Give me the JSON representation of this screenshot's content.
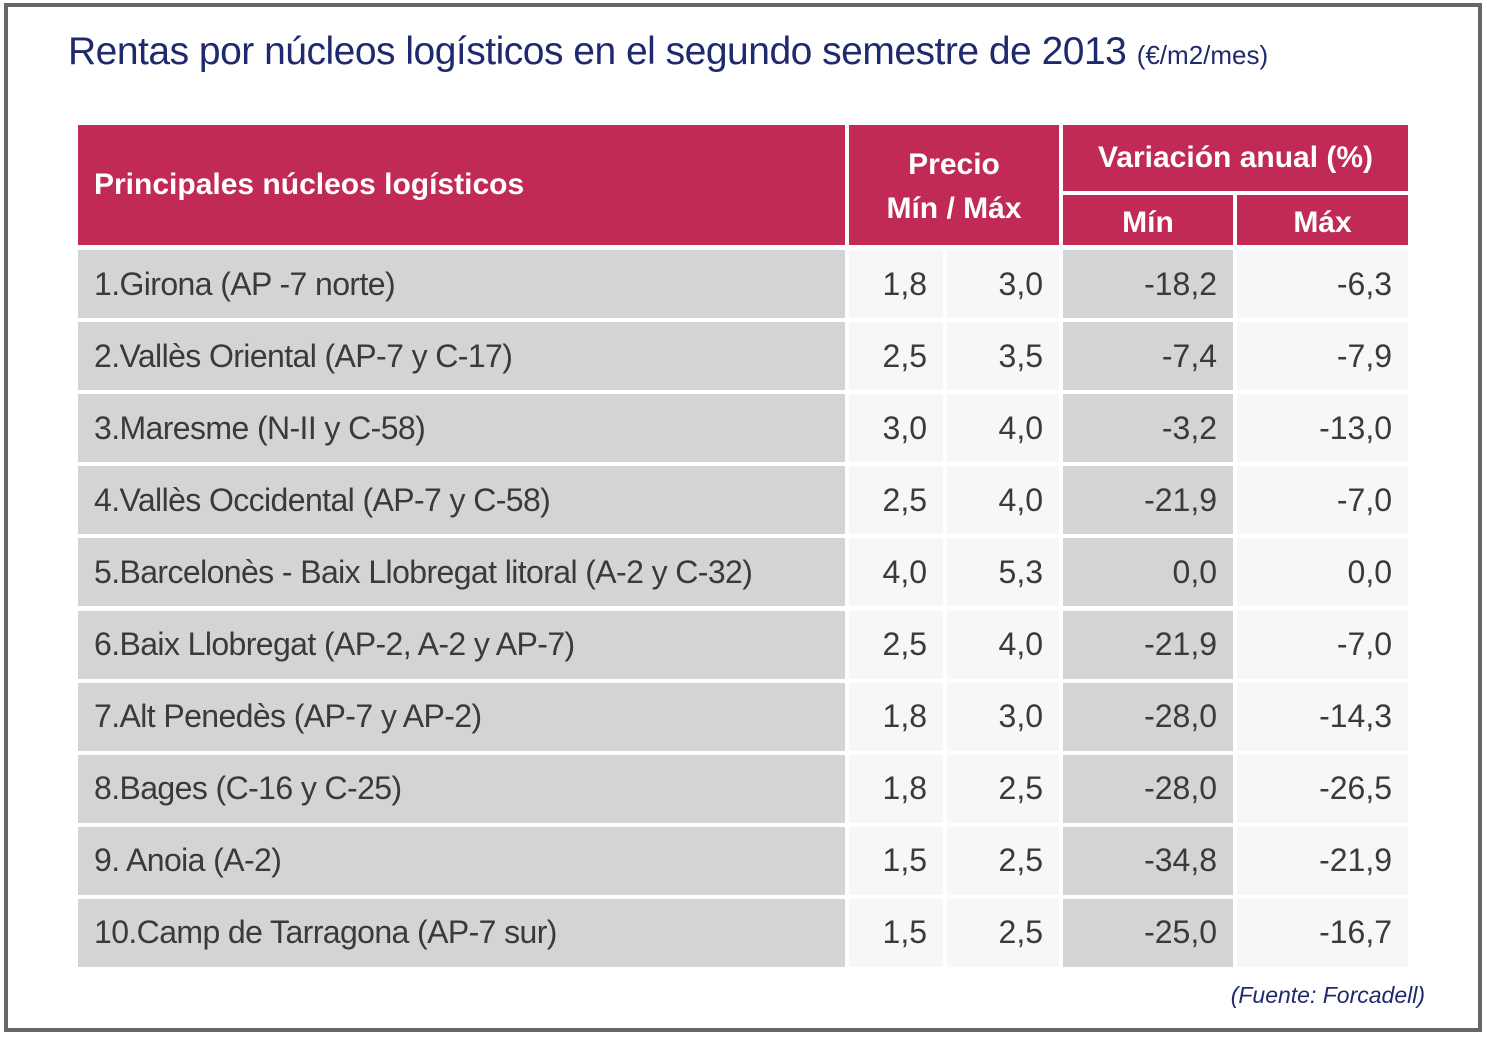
{
  "title": {
    "main": "Rentas por núcleos logísticos en el segundo semestre de 2013",
    "unit": "(€/m2/mes)"
  },
  "colors": {
    "header_bg": "#c12a55",
    "title_text": "#1f2a6e",
    "row_gray": "#d3d4d6",
    "row_light": "#f7f7f7",
    "frame_border": "#666666"
  },
  "table": {
    "headers": {
      "name": "Principales núcleos logísticos",
      "precio_line1": "Precio",
      "precio_line2": "Mín / Máx",
      "variacion": "Variación anual (%)",
      "var_min": "Mín",
      "var_max": "Máx"
    },
    "rows": [
      {
        "name": "1.Girona (AP -7 norte)",
        "precio_min": "1,8",
        "precio_max": "3,0",
        "var_min": "-18,2",
        "var_max": "-6,3"
      },
      {
        "name": "2.Vallès Oriental (AP-7 y C-17)",
        "precio_min": "2,5",
        "precio_max": "3,5",
        "var_min": "-7,4",
        "var_max": "-7,9"
      },
      {
        "name": "3.Maresme (N-II y C-58)",
        "precio_min": "3,0",
        "precio_max": "4,0",
        "var_min": "-3,2",
        "var_max": "-13,0"
      },
      {
        "name": "4.Vallès Occidental (AP-7 y C-58)",
        "precio_min": "2,5",
        "precio_max": "4,0",
        "var_min": "-21,9",
        "var_max": "-7,0"
      },
      {
        "name": "5.Barcelonès - Baix Llobregat litoral (A-2 y C-32)",
        "precio_min": "4,0",
        "precio_max": "5,3",
        "var_min": "0,0",
        "var_max": "0,0"
      },
      {
        "name": "6.Baix Llobregat (AP-2, A-2 y AP-7)",
        "precio_min": "2,5",
        "precio_max": "4,0",
        "var_min": "-21,9",
        "var_max": "-7,0"
      },
      {
        "name": "7.Alt Penedès (AP-7 y AP-2)",
        "precio_min": "1,8",
        "precio_max": "3,0",
        "var_min": "-28,0",
        "var_max": "-14,3"
      },
      {
        "name": "8.Bages (C-16 y C-25)",
        "precio_min": "1,8",
        "precio_max": "2,5",
        "var_min": "-28,0",
        "var_max": "-26,5"
      },
      {
        "name": "9. Anoia (A-2)",
        "precio_min": "1,5",
        "precio_max": "2,5",
        "var_min": "-34,8",
        "var_max": "-21,9"
      },
      {
        "name": "10.Camp de Tarragona (AP-7 sur)",
        "precio_min": "1,5",
        "precio_max": "2,5",
        "var_min": "-25,0",
        "var_max": "-16,7"
      }
    ]
  },
  "source": "(Fuente: Forcadell)"
}
